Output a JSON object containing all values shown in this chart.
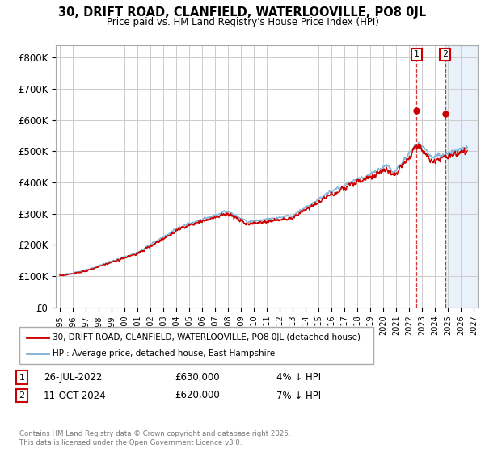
{
  "title_line1": "30, DRIFT ROAD, CLANFIELD, WATERLOOVILLE, PO8 0JL",
  "title_line2": "Price paid vs. HM Land Registry's House Price Index (HPI)",
  "ylabel_ticks": [
    "£0",
    "£100K",
    "£200K",
    "£300K",
    "£400K",
    "£500K",
    "£600K",
    "£700K",
    "£800K"
  ],
  "ytick_vals": [
    0,
    100000,
    200000,
    300000,
    400000,
    500000,
    600000,
    700000,
    800000
  ],
  "ylim": [
    0,
    840000
  ],
  "xlim_start": 1994.7,
  "xlim_end": 2027.3,
  "hpi_color": "#7aaed6",
  "price_color": "#cc0000",
  "marker1_date": "26-JUL-2022",
  "marker1_price": 630000,
  "marker1_label": "4% ↓ HPI",
  "marker1_x": 2022.57,
  "marker2_date": "11-OCT-2024",
  "marker2_price": 620000,
  "marker2_label": "7% ↓ HPI",
  "marker2_x": 2024.78,
  "legend_line1": "30, DRIFT ROAD, CLANFIELD, WATERLOOVILLE, PO8 0JL (detached house)",
  "legend_line2": "HPI: Average price, detached house, East Hampshire",
  "footnote": "Contains HM Land Registry data © Crown copyright and database right 2025.\nThis data is licensed under the Open Government Licence v3.0.",
  "grid_color": "#cccccc",
  "bg_color": "#ffffff",
  "shade_start": 2024.78,
  "shade_end": 2027.3
}
